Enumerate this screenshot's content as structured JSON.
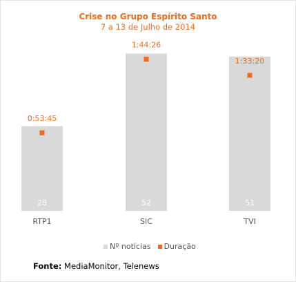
{
  "title": "Crise no Grupo Espírito Santo",
  "subtitle": "7 a 13 de Julho de 2014",
  "source_label": "Fonte:",
  "source_text": "MediaMonitor, Telenews",
  "colors": {
    "bar": "#d9d9d9",
    "marker": "#f26a1b",
    "title": "#f26a1b",
    "bar_label": "#ffffff",
    "axis_text": "#555555"
  },
  "chart_data": {
    "type": "bar",
    "categories": [
      "RTP1",
      "SIC",
      "TVI"
    ],
    "series": [
      {
        "name": "Nº notícias",
        "kind": "bar",
        "values": [
          28,
          52,
          51
        ]
      },
      {
        "name": "Duração",
        "kind": "marker",
        "values": [
          "0:53:45",
          "1:44:26",
          "1:33:20"
        ],
        "values_seconds": [
          3225,
          6266,
          5600
        ]
      }
    ],
    "legend": [
      "Nº notícias",
      "Duração"
    ],
    "legend_position": "bottom",
    "ylim_bars": [
      0,
      56
    ],
    "ylim_duration_seconds": [
      0,
      7000
    ],
    "grid": false
  }
}
